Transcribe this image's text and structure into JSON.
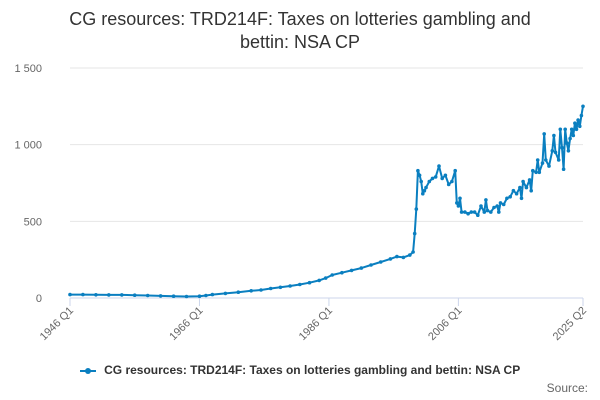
{
  "chart_data": {
    "type": "line",
    "title": "CG resources: TRD214F: Taxes on lotteries gambling and bettin: NSA CP",
    "title_lines": [
      "CG resources: TRD214F: Taxes on lotteries gambling and",
      "bettin: NSA CP"
    ],
    "xlabel": "",
    "ylabel": "",
    "ylim": [
      0,
      1500
    ],
    "yticks": [
      0,
      500,
      1000,
      1500
    ],
    "ytick_labels": [
      "0",
      "500",
      "1 000",
      "1 500"
    ],
    "xlim": [
      1946,
      2025.25
    ],
    "xticks": [
      1946,
      1966,
      1986,
      2006,
      2025.25
    ],
    "xtick_labels": [
      "1946 Q1",
      "1966 Q1",
      "1986 Q1",
      "2006 Q1",
      "2025 Q2"
    ],
    "grid": "horizontal",
    "legend_position": "bottom",
    "series": [
      {
        "name": "CG resources: TRD214F: Taxes on lotteries gambling and bettin: NSA CP",
        "color": "#0a7fc0",
        "points": [
          [
            1946.0,
            22
          ],
          [
            1948.0,
            22
          ],
          [
            1950.0,
            21
          ],
          [
            1952.0,
            20
          ],
          [
            1954.0,
            20
          ],
          [
            1956.0,
            18
          ],
          [
            1958.0,
            16
          ],
          [
            1960.0,
            14
          ],
          [
            1962.0,
            12
          ],
          [
            1964.0,
            10
          ],
          [
            1966.0,
            12
          ],
          [
            1967.0,
            16
          ],
          [
            1968.0,
            22
          ],
          [
            1970.0,
            30
          ],
          [
            1972.0,
            38
          ],
          [
            1974.0,
            47
          ],
          [
            1975.5,
            52
          ],
          [
            1977.0,
            62
          ],
          [
            1978.5,
            70
          ],
          [
            1980.0,
            78
          ],
          [
            1981.5,
            88
          ],
          [
            1983.0,
            100
          ],
          [
            1984.5,
            115
          ],
          [
            1985.5,
            130
          ],
          [
            1986.5,
            150
          ],
          [
            1988.0,
            165
          ],
          [
            1989.5,
            180
          ],
          [
            1991.0,
            195
          ],
          [
            1992.5,
            215
          ],
          [
            1994.0,
            235
          ],
          [
            1995.5,
            255
          ],
          [
            1996.5,
            270
          ],
          [
            1997.5,
            265
          ],
          [
            1998.5,
            280
          ],
          [
            1999.0,
            300
          ],
          [
            1999.25,
            420
          ],
          [
            1999.5,
            580
          ],
          [
            1999.75,
            830
          ],
          [
            2000.0,
            800
          ],
          [
            2000.25,
            760
          ],
          [
            2000.5,
            680
          ],
          [
            2000.75,
            700
          ],
          [
            2001.0,
            720
          ],
          [
            2001.5,
            760
          ],
          [
            2002.0,
            780
          ],
          [
            2002.5,
            790
          ],
          [
            2003.0,
            860
          ],
          [
            2003.5,
            780
          ],
          [
            2004.0,
            800
          ],
          [
            2004.5,
            740
          ],
          [
            2005.0,
            760
          ],
          [
            2005.5,
            830
          ],
          [
            2005.75,
            620
          ],
          [
            2006.0,
            600
          ],
          [
            2006.25,
            650
          ],
          [
            2006.5,
            560
          ],
          [
            2007.0,
            560
          ],
          [
            2007.5,
            550
          ],
          [
            2008.0,
            560
          ],
          [
            2008.5,
            560
          ],
          [
            2009.0,
            540
          ],
          [
            2009.5,
            600
          ],
          [
            2010.0,
            560
          ],
          [
            2010.25,
            640
          ],
          [
            2010.5,
            570
          ],
          [
            2011.0,
            560
          ],
          [
            2011.5,
            590
          ],
          [
            2012.0,
            600
          ],
          [
            2012.25,
            560
          ],
          [
            2012.5,
            620
          ],
          [
            2013.0,
            610
          ],
          [
            2013.5,
            650
          ],
          [
            2014.0,
            660
          ],
          [
            2014.5,
            700
          ],
          [
            2015.0,
            680
          ],
          [
            2015.5,
            720
          ],
          [
            2015.75,
            650
          ],
          [
            2016.0,
            760
          ],
          [
            2016.5,
            720
          ],
          [
            2017.0,
            770
          ],
          [
            2017.25,
            700
          ],
          [
            2017.5,
            830
          ],
          [
            2018.0,
            820
          ],
          [
            2018.25,
            900
          ],
          [
            2018.5,
            820
          ],
          [
            2019.0,
            880
          ],
          [
            2019.25,
            1070
          ],
          [
            2019.5,
            900
          ],
          [
            2020.0,
            860
          ],
          [
            2020.5,
            960
          ],
          [
            2020.75,
            1060
          ],
          [
            2021.0,
            950
          ],
          [
            2021.5,
            900
          ],
          [
            2021.75,
            1100
          ],
          [
            2022.0,
            980
          ],
          [
            2022.25,
            840
          ],
          [
            2022.5,
            1100
          ],
          [
            2022.75,
            1010
          ],
          [
            2023.0,
            960
          ],
          [
            2023.25,
            1040
          ],
          [
            2023.5,
            1100
          ],
          [
            2023.75,
            1060
          ],
          [
            2024.0,
            1140
          ],
          [
            2024.25,
            1100
          ],
          [
            2024.5,
            1160
          ],
          [
            2024.75,
            1120
          ],
          [
            2025.0,
            1190
          ],
          [
            2025.25,
            1250
          ]
        ]
      }
    ]
  },
  "legend": {
    "label": "CG resources: TRD214F: Taxes on lotteries gambling and bettin: NSA CP"
  },
  "source_label": "Source:"
}
